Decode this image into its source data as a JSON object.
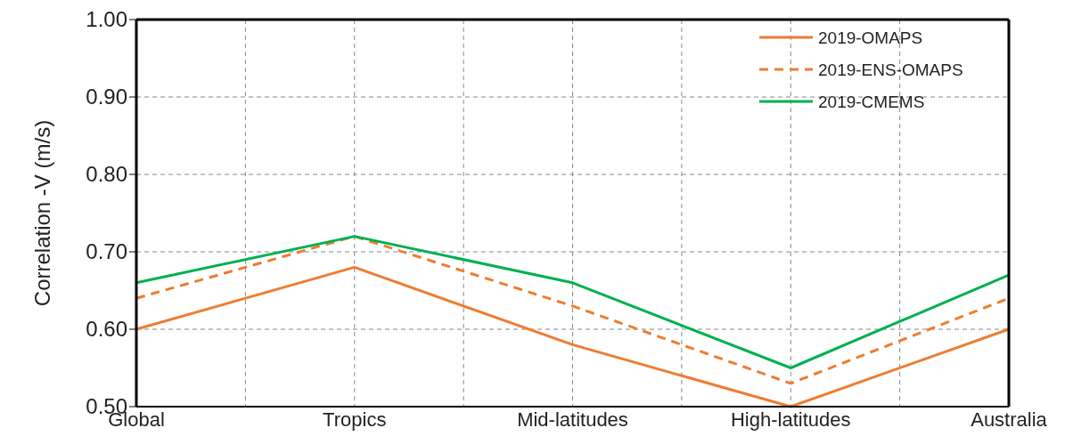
{
  "chart_data": {
    "type": "line",
    "ylabel": "Correlation -V (m/s)",
    "categories": [
      "Global",
      "Tropics",
      "Mid-latitudes",
      "High-latitudes",
      "Australia"
    ],
    "series": [
      {
        "name": "2019-OMAPS",
        "color": "#ed7d31",
        "line_style": "solid",
        "values": [
          0.6,
          0.68,
          0.58,
          0.5,
          0.6
        ]
      },
      {
        "name": "2019-ENS-OMAPS",
        "color": "#ed7d31",
        "line_style": "dashed",
        "values": [
          0.64,
          0.72,
          0.63,
          0.53,
          0.64
        ]
      },
      {
        "name": "2019-CMEMS",
        "color": "#00b050",
        "line_style": "solid",
        "values": [
          0.66,
          0.72,
          0.66,
          0.55,
          0.67
        ]
      }
    ],
    "ylim": [
      0.5,
      1.0
    ],
    "yticks": [
      {
        "value": 0.5,
        "label": "0.50"
      },
      {
        "value": 0.6,
        "label": "0.60"
      },
      {
        "value": 0.7,
        "label": "0.70"
      },
      {
        "value": 0.8,
        "label": "0.80"
      },
      {
        "value": 0.9,
        "label": "0.90"
      },
      {
        "value": 1.0,
        "label": "1.00"
      }
    ],
    "grid": true,
    "legend": "top right",
    "marker": "none"
  }
}
